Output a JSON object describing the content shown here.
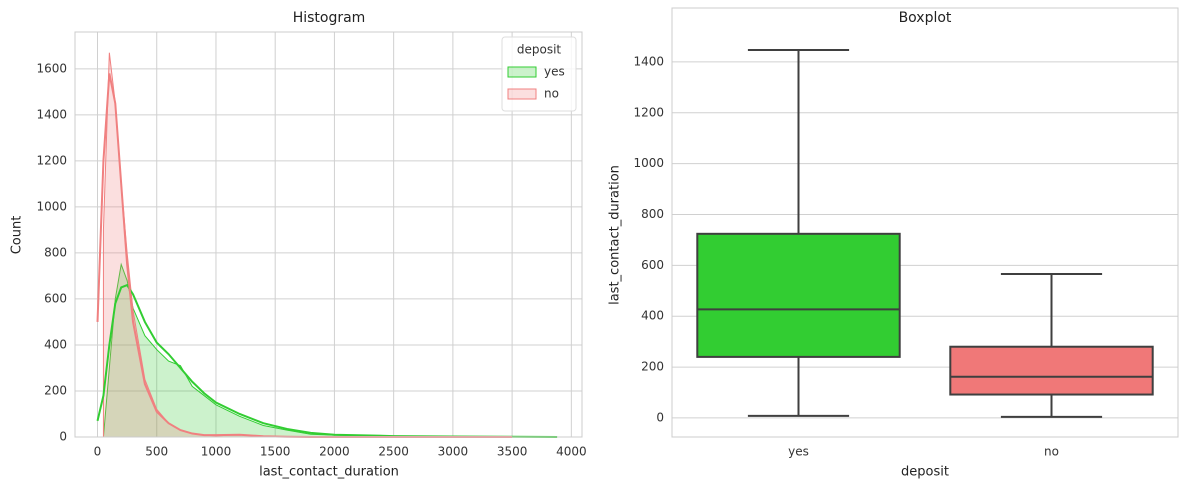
{
  "chart_data": [
    {
      "type": "area",
      "title": "Histogram",
      "xlabel": "last_contact_duration",
      "ylabel": "Count",
      "x": [
        0,
        50,
        100,
        150,
        200,
        250,
        300,
        400,
        500,
        600,
        700,
        800,
        900,
        1000,
        1200,
        1400,
        1600,
        1800,
        2000,
        2500,
        3000,
        3500,
        3880
      ],
      "series": [
        {
          "name": "yes",
          "color": "#32cd32",
          "values": [
            null,
            0,
            300,
            600,
            750,
            680,
            560,
            440,
            380,
            330,
            310,
            220,
            180,
            140,
            90,
            50,
            30,
            12,
            8,
            3,
            2,
            1,
            0
          ],
          "kde": [
            70,
            180,
            400,
            580,
            650,
            660,
            620,
            500,
            410,
            360,
            300,
            240,
            190,
            150,
            100,
            60,
            35,
            18,
            10,
            4,
            2,
            1,
            0
          ]
        },
        {
          "name": "no",
          "color": "#f08080",
          "values": [
            null,
            900,
            1670,
            1450,
            1100,
            800,
            550,
            250,
            120,
            60,
            30,
            15,
            8,
            5,
            10,
            3,
            1,
            1,
            0,
            0,
            0,
            0,
            null
          ],
          "kde": [
            500,
            1200,
            1580,
            1450,
            1100,
            750,
            500,
            230,
            110,
            60,
            30,
            15,
            8,
            8,
            10,
            3,
            1,
            0,
            0,
            0,
            0,
            0,
            null
          ]
        }
      ],
      "xlim": [
        -190,
        4090
      ],
      "ylim": [
        0,
        1760
      ],
      "xticks": [
        0,
        500,
        1000,
        1500,
        2000,
        2500,
        3000,
        3500,
        4000
      ],
      "yticks": [
        0,
        200,
        400,
        600,
        800,
        1000,
        1200,
        1400,
        1600
      ],
      "grid": true,
      "legend_title": "deposit",
      "legend": "upper right"
    },
    {
      "type": "box",
      "title": "Boxplot",
      "xlabel": "deposit",
      "ylabel": "last_contact_duration",
      "categories": [
        "yes",
        "no"
      ],
      "boxes": [
        {
          "low": 8,
          "q1": 240,
          "median": 427,
          "q3": 724,
          "high": 1447,
          "color": "#32cd32"
        },
        {
          "low": 4,
          "q1": 92,
          "median": 162,
          "q3": 280,
          "high": 566,
          "color": "#f07878"
        }
      ],
      "ylim": [
        -75,
        1612
      ],
      "yticks": [
        0,
        200,
        400,
        600,
        800,
        1000,
        1200,
        1400
      ],
      "grid": true
    }
  ]
}
